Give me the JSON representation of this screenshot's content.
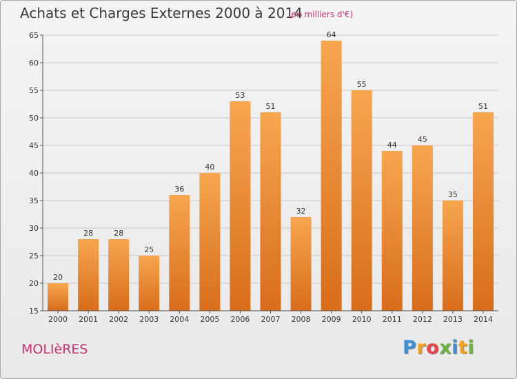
{
  "title": "Achats et Charges Externes 2000 à 2014",
  "subtitle": "(en milliers d'€)",
  "commune": "MOLIèRES",
  "logo": {
    "letters": [
      "P",
      "r",
      "o",
      "x",
      "i",
      "t",
      "i"
    ],
    "colors": [
      "#3c8fd6",
      "#f4a21a",
      "#e9454a",
      "#6cb33f",
      "#3c8fd6",
      "#f4a21a",
      "#6cb33f"
    ]
  },
  "chart_data": {
    "type": "bar",
    "categories": [
      "2000",
      "2001",
      "2002",
      "2003",
      "2004",
      "2005",
      "2006",
      "2007",
      "2008",
      "2009",
      "2010",
      "2011",
      "2012",
      "2013",
      "2014"
    ],
    "values": [
      20,
      28,
      28,
      25,
      36,
      40,
      53,
      51,
      32,
      64,
      55,
      44,
      45,
      35,
      51
    ],
    "ylim": [
      15,
      65
    ],
    "yticks": [
      15,
      20,
      25,
      30,
      35,
      40,
      45,
      50,
      55,
      60,
      65
    ],
    "grid": true,
    "colors": {
      "bar_top": "#f7a64f",
      "bar_bottom": "#d86d1a",
      "grid": "#c8c8c8"
    }
  }
}
